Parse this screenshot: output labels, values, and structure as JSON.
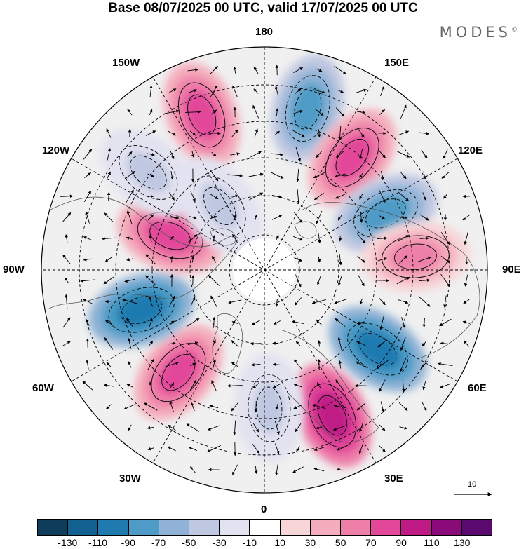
{
  "title": "Base 08/07/2025 00 UTC, valid 17/07/2025 00 UTC",
  "brand": "MODES",
  "brand_mark": "©",
  "longitude_labels": {
    "top": "180",
    "bottom": "0",
    "left": "90W",
    "right": "90E",
    "top_left": "150W",
    "top_right": "150E",
    "upper_left": "120W",
    "upper_right": "120E",
    "lower_left": "60W",
    "lower_right": "60E",
    "bottom_left": "30W",
    "bottom_right": "30E"
  },
  "reference_vector_label": "10",
  "colorbar": {
    "labels": [
      "-130",
      "-110",
      "-90",
      "-70",
      "-50",
      "-30",
      "-10",
      "10",
      "30",
      "50",
      "70",
      "90",
      "110",
      "130"
    ],
    "colors": [
      "#0e3d5c",
      "#11608f",
      "#1f7ab0",
      "#4d9bc6",
      "#8fb2d6",
      "#bfc7e1",
      "#e2e2f0",
      "#ffffff",
      "#f7d6d8",
      "#f4adbc",
      "#ee7fa8",
      "#e2479a",
      "#c01a86",
      "#8a0a7a",
      "#5a0a6e"
    ]
  },
  "anomaly_features": [
    {
      "sign": "negative",
      "level": 90,
      "bearing_deg": 55,
      "radius_frac": 0.62
    },
    {
      "sign": "positive",
      "level": 90,
      "bearing_deg": 25,
      "radius_frac": 0.72
    },
    {
      "sign": "negative",
      "level": 30,
      "bearing_deg": 2,
      "radius_frac": 0.62
    },
    {
      "sign": "positive",
      "level": 70,
      "bearing_deg": -40,
      "radius_frac": 0.6
    },
    {
      "sign": "negative",
      "level": 90,
      "bearing_deg": -72,
      "radius_frac": 0.58
    },
    {
      "sign": "positive",
      "level": 70,
      "bearing_deg": -110,
      "radius_frac": 0.45
    },
    {
      "sign": "negative",
      "level": 30,
      "bearing_deg": -130,
      "radius_frac": 0.68
    },
    {
      "sign": "positive",
      "level": 70,
      "bearing_deg": -158,
      "radius_frac": 0.75
    },
    {
      "sign": "negative",
      "level": 70,
      "bearing_deg": 165,
      "radius_frac": 0.75
    },
    {
      "sign": "positive",
      "level": 70,
      "bearing_deg": 142,
      "radius_frac": 0.64
    },
    {
      "sign": "negative",
      "level": 70,
      "bearing_deg": 115,
      "radius_frac": 0.6
    },
    {
      "sign": "positive",
      "level": 50,
      "bearing_deg": 95,
      "radius_frac": 0.68
    },
    {
      "sign": "negative",
      "level": 30,
      "bearing_deg": -145,
      "radius_frac": 0.35
    }
  ]
}
